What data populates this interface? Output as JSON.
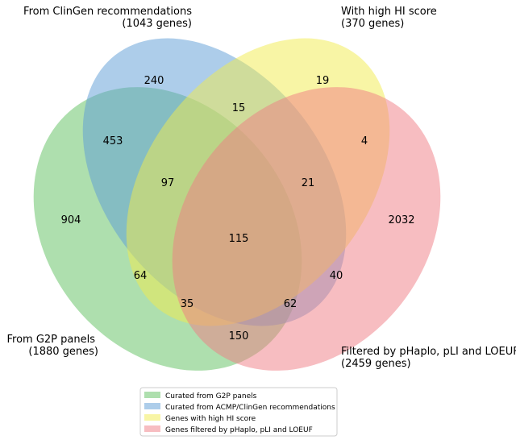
{
  "sets": [
    {
      "key": "g2p",
      "name": "From G2P panels",
      "size": "(1880 genes)",
      "color": "#6bc46b"
    },
    {
      "key": "clingen",
      "name": "From ClinGen recommendations",
      "size": "(1043 genes)",
      "color": "#5b9bd5"
    },
    {
      "key": "hi",
      "name": "With high HI score",
      "size": "(370 genes)",
      "color": "#f2ec4c"
    },
    {
      "key": "filtered",
      "name": "Filtered by pHaplo, pLI and LOEUF",
      "size": "(2459 genes)",
      "color": "#f07c84"
    }
  ],
  "counts": {
    "clingen_only": "240",
    "hi_only": "19",
    "clingen_hi": "15",
    "g2p_clingen": "453",
    "hi_filtered": "4",
    "g2p_clingen_hi": "97",
    "clingen_hi_filtered": "21",
    "g2p_only": "904",
    "filtered_only": "2032",
    "all_four": "115",
    "g2p_hi": "64",
    "clingen_filtered": "40",
    "g2p_hi_filtered": "35",
    "g2p_clingen_filtered": "62",
    "g2p_filtered": "150"
  },
  "legend": [
    {
      "label": "Curated from G2P panels",
      "color": "#6bc46b"
    },
    {
      "label": "Curated from ACMP/ClinGen recommendations",
      "color": "#5b9bd5"
    },
    {
      "label": "Genes with high HI score",
      "color": "#f2ec4c"
    },
    {
      "label": "Genes filtered by pHaplo, pLI and LOEUF",
      "color": "#f07c84"
    }
  ]
}
